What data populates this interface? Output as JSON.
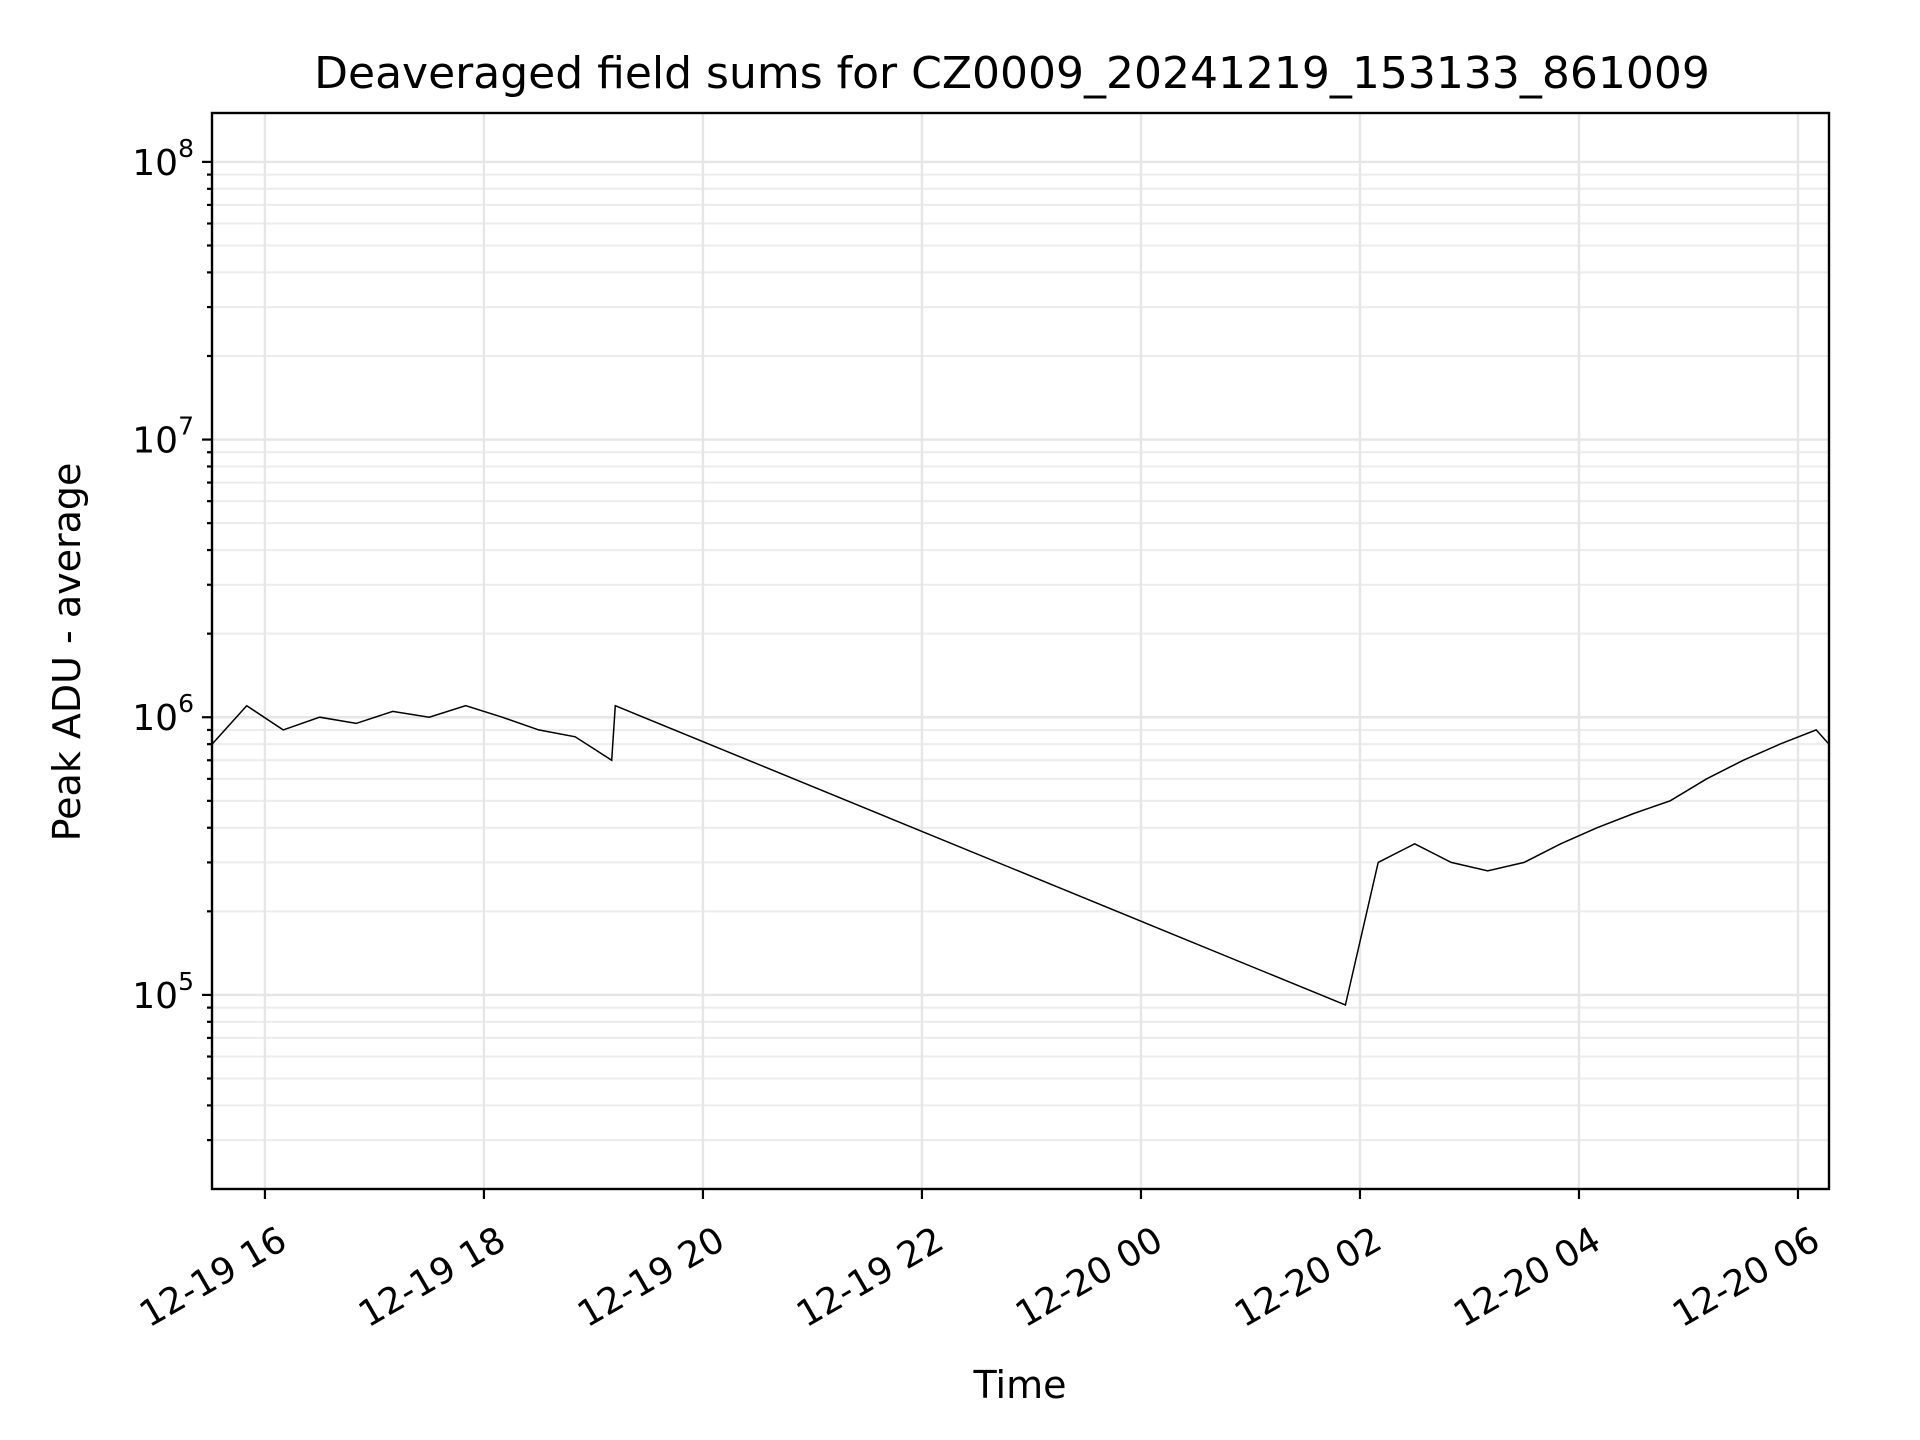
{
  "chart_data": {
    "type": "line",
    "title": "Deaveraged field sums for CZ0009_20241219_153133_861009",
    "xlabel": "Time",
    "ylabel": "Peak ADU - average",
    "yscale": "log",
    "grid": "on (major and minor)",
    "line_color": "#000000",
    "xlim": [
      "2024-12-19 15:31",
      "2024-12-20 06:17"
    ],
    "ylim": [
      20000,
      150000000
    ],
    "x_ticks": [
      "12-19 16",
      "12-19 18",
      "12-19 20",
      "12-19 22",
      "12-20 00",
      "12-20 02",
      "12-20 04",
      "12-20 06"
    ],
    "y_ticks": [
      {
        "base": "10",
        "exp": "5",
        "value": 100000
      },
      {
        "base": "10",
        "exp": "6",
        "value": 1000000
      },
      {
        "base": "10",
        "exp": "7",
        "value": 10000000
      },
      {
        "base": "10",
        "exp": "8",
        "value": 100000000
      }
    ],
    "series": [
      {
        "x": [
          "2024-12-19 15:31",
          "2024-12-19 15:50",
          "2024-12-19 16:10",
          "2024-12-19 16:30",
          "2024-12-19 16:50",
          "2024-12-19 17:10",
          "2024-12-19 17:30",
          "2024-12-19 17:50",
          "2024-12-19 18:10",
          "2024-12-19 18:30",
          "2024-12-19 18:50",
          "2024-12-19 19:10",
          "2024-12-19 19:12",
          "2024-12-20 01:52",
          "2024-12-20 02:10",
          "2024-12-20 02:30",
          "2024-12-20 02:50",
          "2024-12-20 03:10",
          "2024-12-20 03:30",
          "2024-12-20 03:50",
          "2024-12-20 04:10",
          "2024-12-20 04:30",
          "2024-12-20 04:50",
          "2024-12-20 05:10",
          "2024-12-20 05:30",
          "2024-12-20 05:50",
          "2024-12-20 06:10",
          "2024-12-20 06:17"
        ],
        "y": [
          800000,
          1100000,
          900000,
          1000000,
          950000,
          1050000,
          1000000,
          1100000,
          1000000,
          900000,
          850000,
          700000,
          1100000,
          92000,
          300000,
          350000,
          300000,
          280000,
          300000,
          350000,
          400000,
          450000,
          500000,
          600000,
          700000,
          800000,
          900000,
          800000
        ]
      }
    ]
  }
}
